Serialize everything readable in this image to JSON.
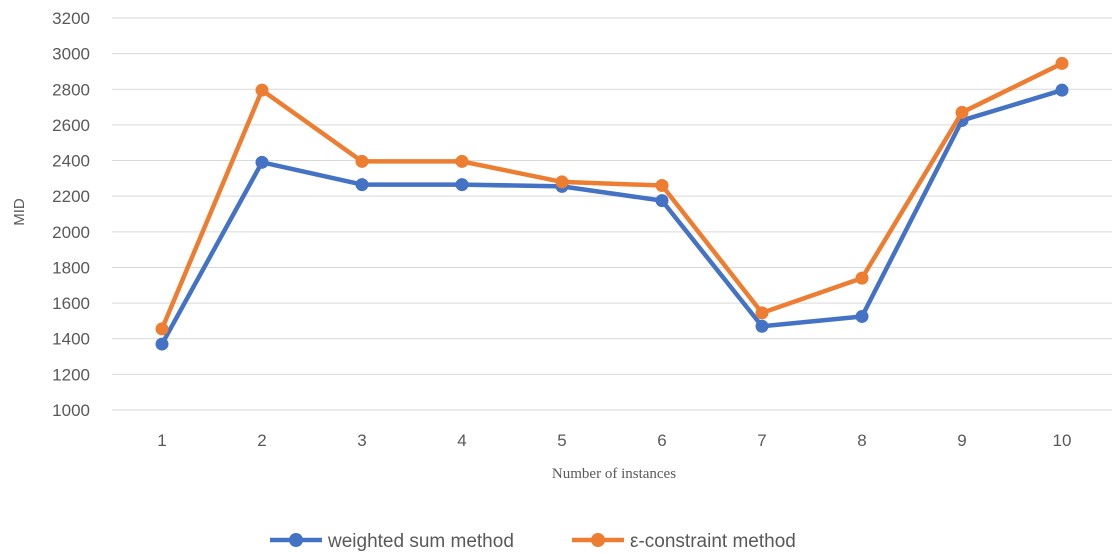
{
  "chart_data": {
    "type": "line",
    "title": "",
    "xlabel": "Number of instances",
    "ylabel": "MID",
    "categories": [
      "1",
      "2",
      "3",
      "4",
      "5",
      "6",
      "7",
      "8",
      "9",
      "10"
    ],
    "ylim": [
      1000,
      3200
    ],
    "yticks": [
      1000,
      1200,
      1400,
      1600,
      1800,
      2000,
      2200,
      2400,
      2600,
      2800,
      3000,
      3200
    ],
    "grid": true,
    "legend_position": "bottom",
    "series": [
      {
        "name": "weighted sum method",
        "color": "#4472C4",
        "values": [
          1370,
          2390,
          2265,
          2265,
          2255,
          2175,
          1470,
          1525,
          2625,
          2795
        ]
      },
      {
        "name": "ε-constraint method",
        "color": "#ED7D31",
        "values": [
          1455,
          2795,
          2395,
          2395,
          2280,
          2260,
          1545,
          1740,
          2670,
          2945
        ]
      }
    ]
  }
}
